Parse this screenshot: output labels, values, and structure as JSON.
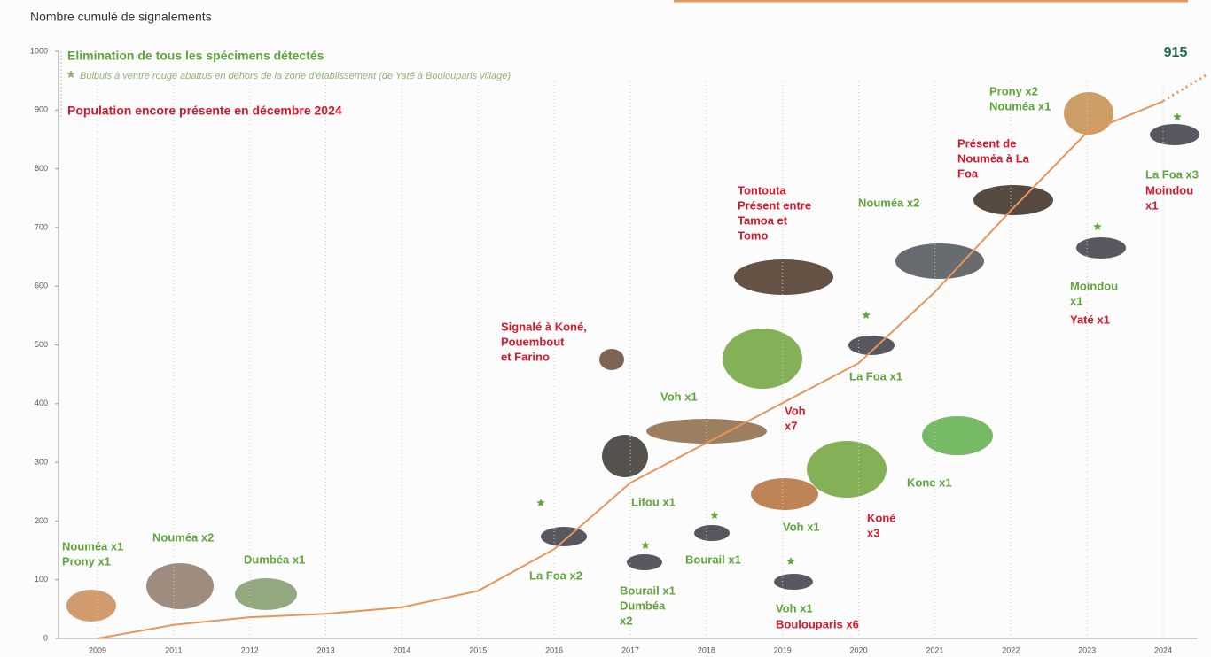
{
  "chart_data": {
    "type": "line",
    "ylabel": "Nombre cumulé de signalements",
    "legend": [
      {
        "text": "Elimination de tous les spécimens détectés",
        "color": "#5fa53a"
      },
      {
        "text": "Bulbuls à ventre rouge abattus en dehors de la zone d'établissement (de Yaté à Boulouparis village)",
        "color": "#8fb27a"
      },
      {
        "text": "Population encore présente en décembre 2024",
        "color": "#d5182b"
      }
    ],
    "categories": [
      "2009",
      "2011",
      "2012",
      "2013",
      "2014",
      "2015",
      "2016",
      "2017",
      "2018",
      "2019",
      "2020",
      "2021",
      "2022",
      "2023",
      "2024"
    ],
    "series": [
      {
        "color": "#e8955a",
        "values": [
          0,
          23,
          36,
          42,
          53,
          81,
          152,
          265,
          333,
          401,
          469,
          590,
          729,
          862,
          915
        ]
      }
    ],
    "ylim": [
      0,
      1000
    ],
    "yticks": [
      0,
      100,
      200,
      300,
      400,
      500,
      600,
      700,
      800,
      900,
      1000
    ],
    "grid": true,
    "annotations": [
      {
        "lines": [
          "Nouméa x1",
          "Prony x1"
        ],
        "color": "#5fa53a"
      },
      {
        "lines": [
          "Nouméa x2"
        ],
        "color": "#5fa53a"
      },
      {
        "lines": [
          "Dumbéa x1"
        ],
        "color": "#5fa53a"
      },
      {
        "lines": [
          "La Foa x2"
        ],
        "color": "#5fa53a"
      },
      {
        "lines": [
          "Signalé à Koné,",
          "Pouembout",
          "et Farino"
        ],
        "color": "#d5182b"
      },
      {
        "lines": [
          "Lifou x1"
        ],
        "color": "#5fa53a"
      },
      {
        "lines": [
          "Bourail x1",
          "Dumbéa",
          "x2"
        ],
        "color": "#5fa53a"
      },
      {
        "lines": [
          "Voh x1"
        ],
        "color": "#5fa53a"
      },
      {
        "lines": [
          "Bourail x1"
        ],
        "color": "#5fa53a"
      },
      {
        "lines": [
          "Tontouta",
          "Présent entre",
          "Tamoa et",
          "Tomo"
        ],
        "color": "#d5182b"
      },
      {
        "lines": [
          "Voh",
          "x7"
        ],
        "color": "#d5182b"
      },
      {
        "lines": [
          "Voh x1"
        ],
        "color": "#5fa53a"
      },
      {
        "lines": [
          "Voh x1"
        ],
        "color": "#5fa53a"
      },
      {
        "lines": [
          "Boulouparis x6"
        ],
        "color": "#d5182b"
      },
      {
        "lines": [
          "La Foa x1"
        ],
        "color": "#5fa53a"
      },
      {
        "lines": [
          "Koné",
          "x3"
        ],
        "color": "#d5182b"
      },
      {
        "lines": [
          "Nouméa x2"
        ],
        "color": "#5fa53a"
      },
      {
        "lines": [
          "Kone x1"
        ],
        "color": "#5fa53a"
      },
      {
        "lines": [
          "Présent de",
          "Nouméa à La",
          "Foa"
        ],
        "color": "#d5182b"
      },
      {
        "lines": [
          "Prony x2",
          "Nouméa x1"
        ],
        "color": "#5fa53a"
      },
      {
        "lines": [
          "Moindou",
          "x1"
        ],
        "color": "#5fa53a"
      },
      {
        "lines": [
          "Yaté x1"
        ],
        "color": "#d5182b"
      },
      {
        "lines": [
          "La Foa x3"
        ],
        "color": "#5fa53a"
      },
      {
        "lines": [
          "Moindou",
          "x1"
        ],
        "color": "#d5182b"
      }
    ]
  }
}
